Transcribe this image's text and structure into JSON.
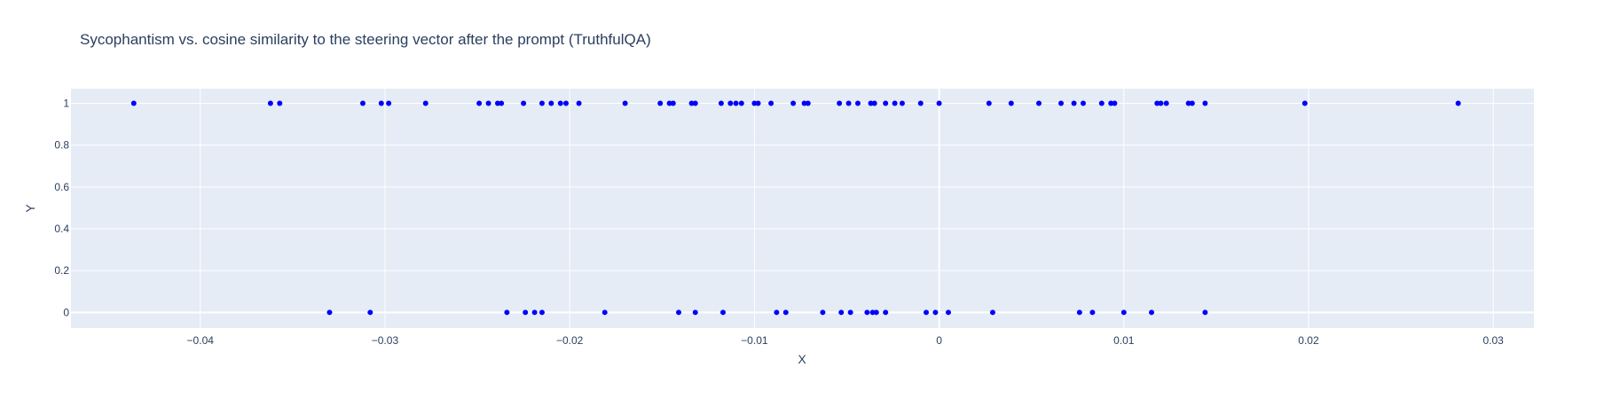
{
  "chart_data": {
    "type": "scatter",
    "title": "Sycophantism vs. cosine similarity to the steering vector after the prompt (TruthfulQA)",
    "xlabel": "X",
    "ylabel": "Y",
    "xlim": [
      -0.047,
      0.0322
    ],
    "ylim": [
      -0.075,
      1.07
    ],
    "xticks": [
      -0.04,
      -0.03,
      -0.02,
      -0.01,
      0,
      0.01,
      0.02,
      0.03
    ],
    "xtick_labels": [
      "−0.04",
      "−0.03",
      "−0.02",
      "−0.01",
      "0",
      "0.01",
      "0.02",
      "0.03"
    ],
    "yticks": [
      0,
      0.2,
      0.4,
      0.6,
      0.8,
      1
    ],
    "ytick_labels": [
      "0",
      "0.2",
      "0.4",
      "0.6",
      "0.8",
      "1"
    ],
    "grid": true,
    "marker_color": "#0000ff",
    "plot_bg": "#e5ecf6",
    "series": [
      {
        "x": [
          -0.0436,
          -0.0362,
          -0.0357,
          -0.0312,
          -0.0302,
          -0.0298,
          -0.0278,
          -0.0249,
          -0.0244,
          -0.0239,
          -0.0237,
          -0.0225,
          -0.0215,
          -0.021,
          -0.0205,
          -0.0202,
          -0.0195,
          -0.017,
          -0.0151,
          -0.0146,
          -0.0144,
          -0.0134,
          -0.0132,
          -0.0118,
          -0.0113,
          -0.011,
          -0.0107,
          -0.01,
          -0.0098,
          -0.0091,
          -0.0079,
          -0.0073,
          -0.0071,
          -0.0054,
          -0.0049,
          -0.0044,
          -0.0037,
          -0.0035,
          -0.0029,
          -0.0024,
          -0.002,
          -0.001,
          0.0,
          0.0027,
          0.0039,
          0.0054,
          0.0066,
          0.0073,
          0.0078,
          0.0088,
          0.0093,
          0.0095,
          0.0118,
          0.012,
          0.0123,
          0.0135,
          0.0137,
          0.0144,
          0.0198,
          0.0281
        ],
        "y": [
          1,
          1,
          1,
          1,
          1,
          1,
          1,
          1,
          1,
          1,
          1,
          1,
          1,
          1,
          1,
          1,
          1,
          1,
          1,
          1,
          1,
          1,
          1,
          1,
          1,
          1,
          1,
          1,
          1,
          1,
          1,
          1,
          1,
          1,
          1,
          1,
          1,
          1,
          1,
          1,
          1,
          1,
          1,
          1,
          1,
          1,
          1,
          1,
          1,
          1,
          1,
          1,
          1,
          1,
          1,
          1,
          1,
          1,
          1,
          1
        ]
      },
      {
        "x": [
          -0.033,
          -0.0308,
          -0.0234,
          -0.0224,
          -0.0219,
          -0.0215,
          -0.0181,
          -0.0141,
          -0.0132,
          -0.0117,
          -0.0088,
          -0.0083,
          -0.0063,
          -0.0053,
          -0.0048,
          -0.0039,
          -0.0036,
          -0.0034,
          -0.0029,
          -0.0007,
          -0.0002,
          0.0005,
          0.0029,
          0.0076,
          0.0083,
          0.01,
          0.0115,
          0.0144
        ],
        "y": [
          0,
          0,
          0,
          0,
          0,
          0,
          0,
          0,
          0,
          0,
          0,
          0,
          0,
          0,
          0,
          0,
          0,
          0,
          0,
          0,
          0,
          0,
          0,
          0,
          0,
          0,
          0,
          0
        ]
      }
    ]
  }
}
